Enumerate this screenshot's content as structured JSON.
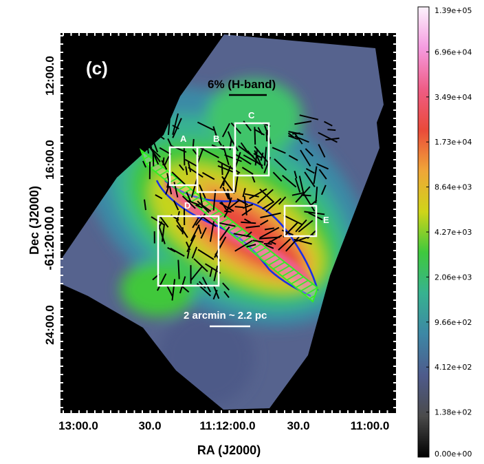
{
  "panel_label": "(c)",
  "scale_label": "6% (H-band)",
  "distance_scale_label": "2 arcmin ~ 2.2 pc",
  "x_axis": {
    "title": "RA  (J2000)",
    "ticks": [
      "13:00.0",
      "30.0",
      "11:12:00.0",
      "30.0",
      "11:00.0"
    ]
  },
  "y_axis": {
    "title_line1": "Dec (J2000)",
    "title_line2": "-61:20:00.0",
    "ticks": [
      "12:00.0",
      "16:00.0",
      "24:00.0"
    ]
  },
  "colorbar": {
    "labels": [
      "1.39e+05",
      "6.96e+04",
      "3.49e+04",
      "1.73e+04",
      "8.64e+03",
      "4.27e+03",
      "2.06e+03",
      "9.66e+02",
      "4.12e+02",
      "1.38e+02",
      "0.00e+00"
    ],
    "stops": [
      "#fdf3fd",
      "#f59be0",
      "#ef5d86",
      "#ea4a3a",
      "#f0a638",
      "#cfd419",
      "#3fc93d",
      "#37b290",
      "#3d87a5",
      "#4e5b8c",
      "#4b4b4b",
      "#000000"
    ]
  },
  "regions": [
    {
      "label": "A"
    },
    {
      "label": "B"
    },
    {
      "label": "C"
    },
    {
      "label": "D"
    },
    {
      "label": "E"
    }
  ],
  "colors": {
    "background": "#000000",
    "box": "#ffffff",
    "contour": "#1a2ee8",
    "hatch": "#33ee22",
    "vector": "#000000"
  }
}
